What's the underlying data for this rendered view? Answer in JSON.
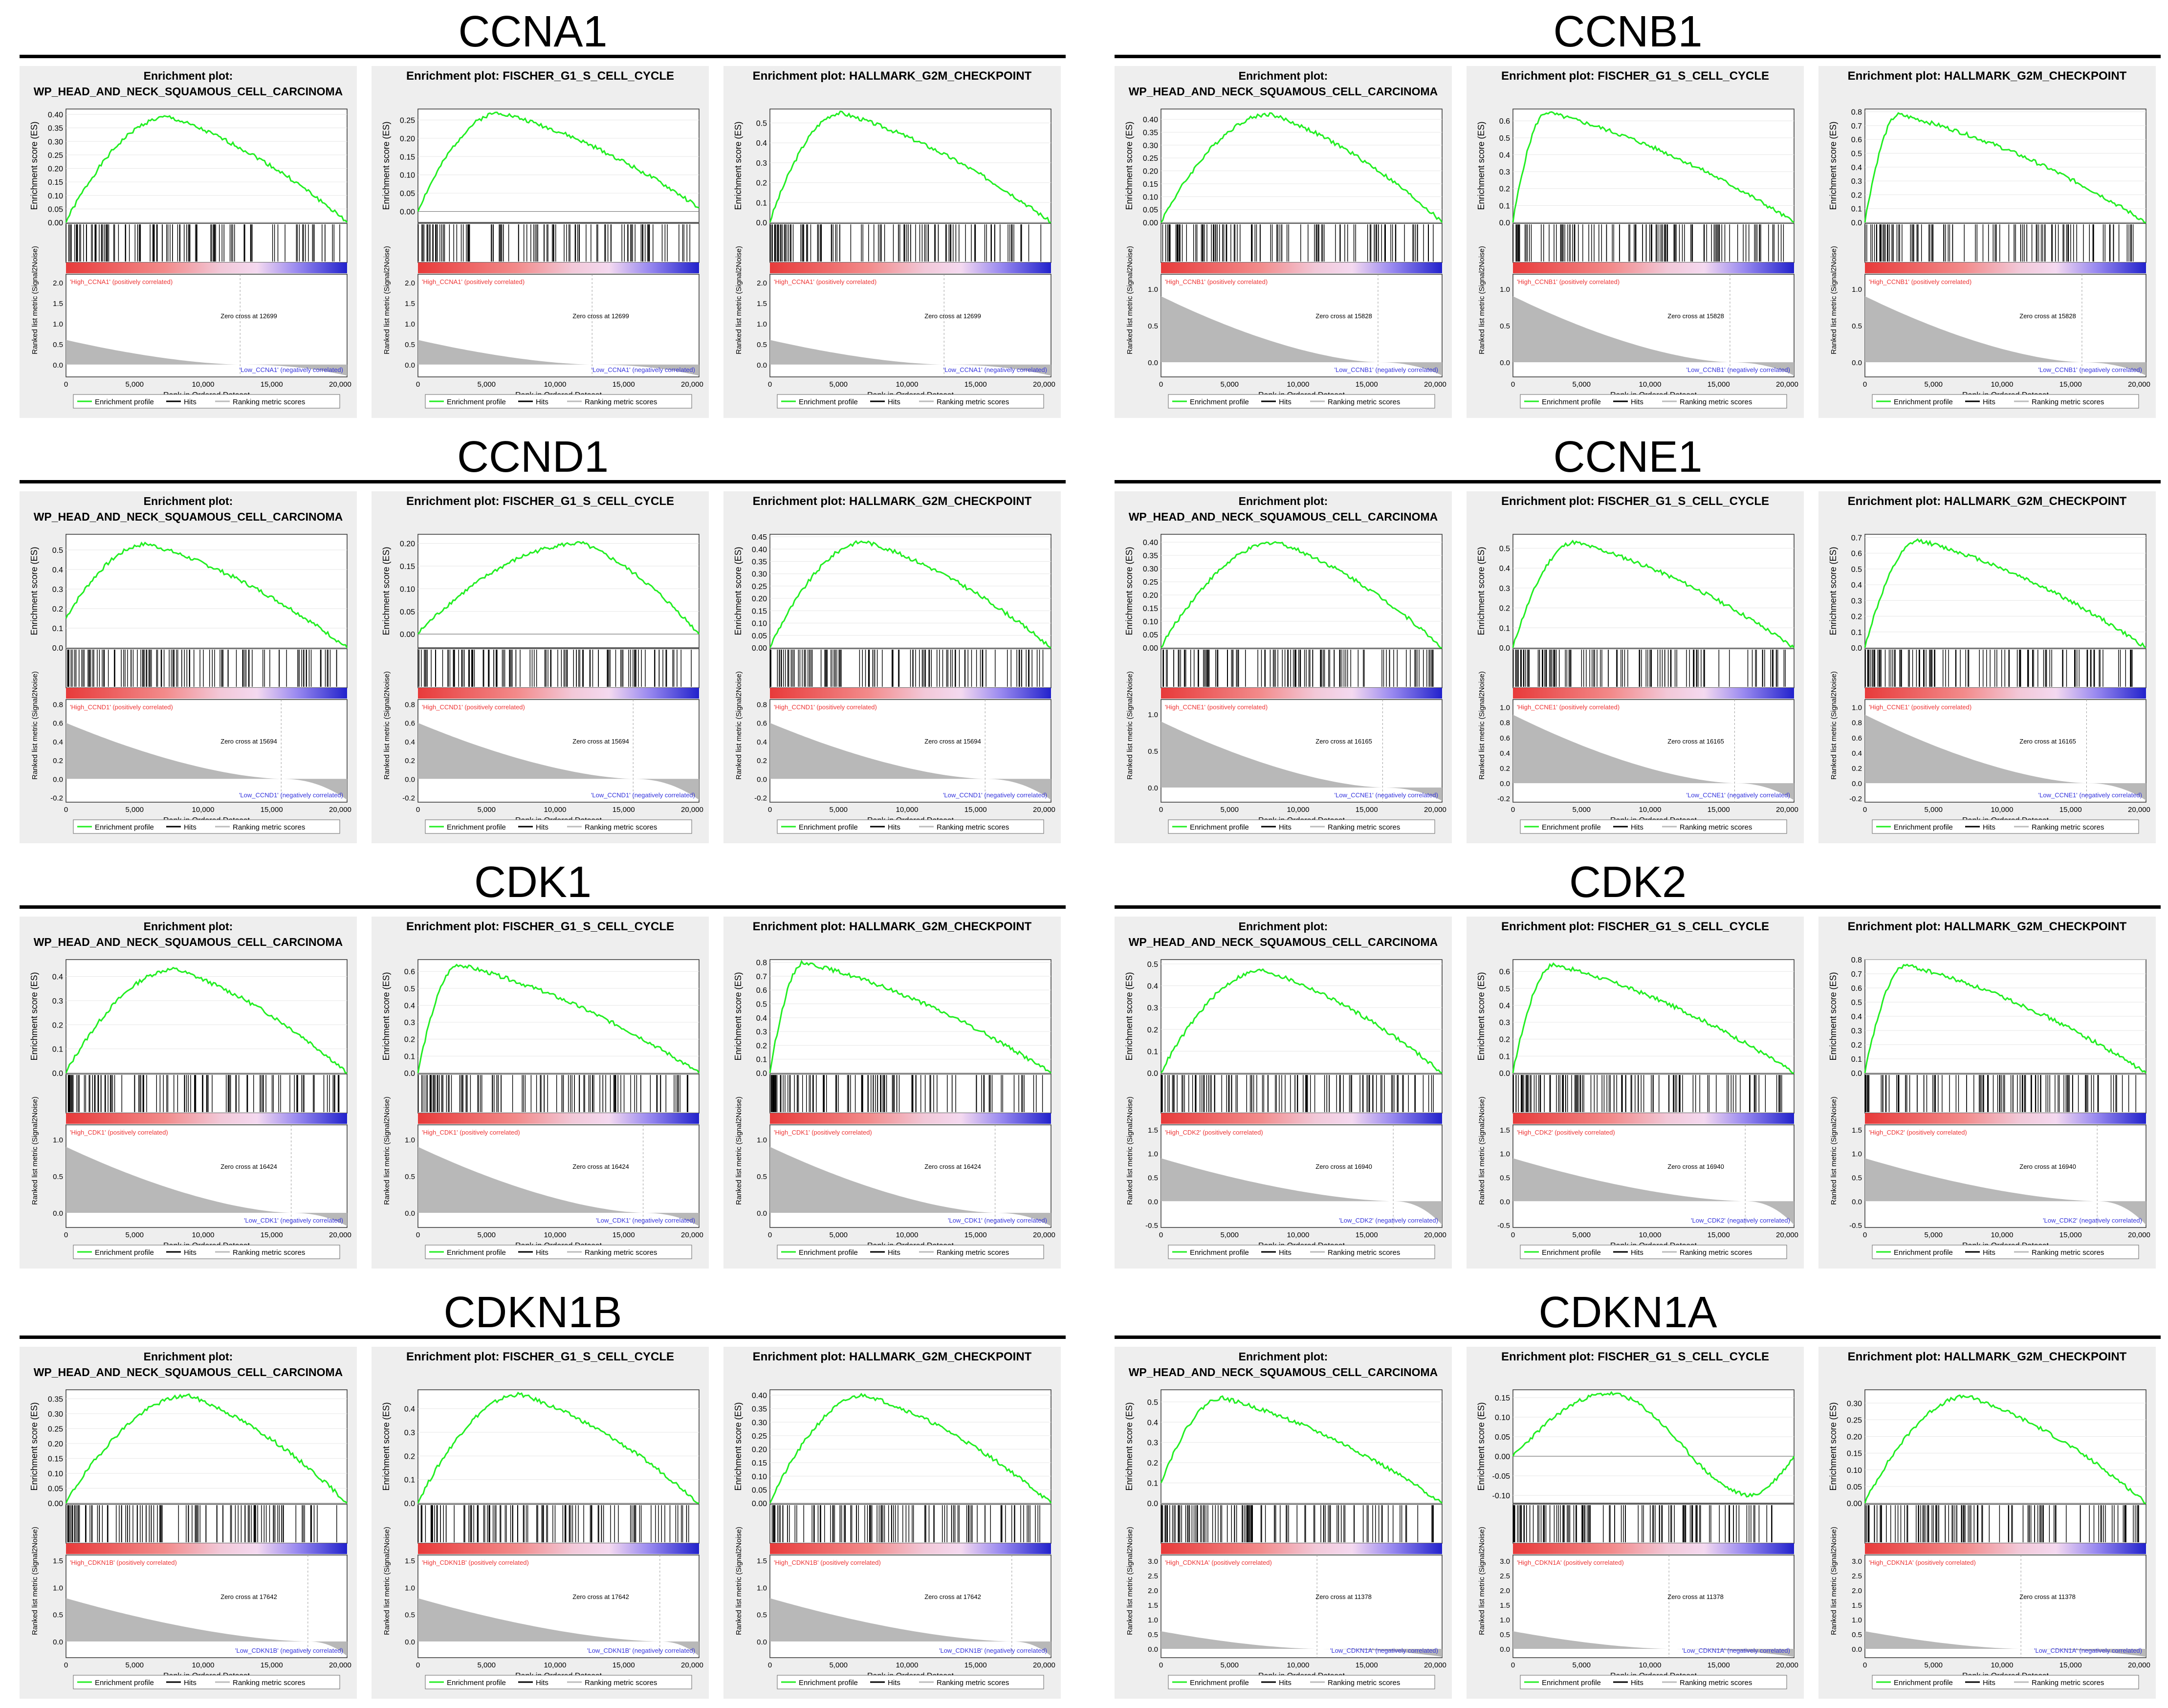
{
  "common": {
    "prefix": "Enrichment plot:",
    "es_label": "Enrichment score (ES)",
    "metric_label": "Ranked list metric (Signal2Noise)",
    "x_label": "Rank in Ordered Dataset",
    "x_ticks": [
      "0",
      "5,000",
      "10,000",
      "15,000",
      "20,000"
    ],
    "legend": [
      "Enrichment profile",
      "Hits",
      "Ranking metric scores"
    ],
    "colors": {
      "profile": "#22ee22",
      "hits": "#000000",
      "high": "#ee3333",
      "low": "#3333dd",
      "metric": "#b8b8b8"
    }
  },
  "groups": [
    {
      "gene": "CCNA1",
      "zero_cross": "Zero cross at 12699",
      "high": "'High_CCNA1' (positively correlated)",
      "low": "'Low_CCNA1' (negatively correlated)"
    },
    {
      "gene": "CCNB1",
      "zero_cross": "Zero cross at 15828",
      "high": "'High_CCNB1' (positively correlated)",
      "low": "'Low_CCNB1' (negatively correlated)"
    },
    {
      "gene": "CCND1",
      "zero_cross": "Zero cross at 15694",
      "high": "'High_CCND1' (positively correlated)",
      "low": "'Low_CCND1' (negatively correlated)"
    },
    {
      "gene": "CCNE1",
      "zero_cross": "Zero cross at 16165",
      "high": "'High_CCNE1' (positively correlated)",
      "low": "'Low_CCNE1' (negatively correlated)"
    },
    {
      "gene": "CDK1",
      "zero_cross": "Zero cross at 16424",
      "high": "'High_CDK1' (positively correlated)",
      "low": "'Low_CDK1' (negatively correlated)"
    },
    {
      "gene": "CDK2",
      "zero_cross": "Zero cross at 16940",
      "high": "'High_CDK2' (positively correlated)",
      "low": "'Low_CDK2' (negatively correlated)"
    },
    {
      "gene": "CDKN1B",
      "zero_cross": "Zero cross at 17642",
      "high": "'High_CDKN1B' (positively correlated)",
      "low": "'Low_CDKN1B' (negatively correlated)"
    },
    {
      "gene": "CDKN1A",
      "zero_cross": "Zero cross at 11378",
      "high": "'High_CDKN1A' (positively correlated)",
      "low": "'Low_CDKN1A' (negatively correlated)"
    }
  ],
  "chart_data": [
    {
      "type": "line",
      "group": "CCNA1",
      "title_lines": [
        "Enrichment plot:",
        "WP_HEAD_AND_NECK_SQUAMOUS_CELL_CARCINOMA"
      ],
      "es_ticks": [
        "0.00",
        "0.05",
        "0.10",
        "0.15",
        "0.20",
        "0.25",
        "0.30",
        "0.35",
        "0.40"
      ],
      "es_range": [
        0,
        0.42
      ],
      "peak_x": 7500,
      "peak_es": 0.39,
      "end_es": 0.0,
      "start_es": 0.0,
      "zero_cross_x": 12699,
      "metric_ticks": [
        "0.0",
        "0.5",
        "1.0",
        "1.5",
        "2.0"
      ],
      "metric_range": [
        -0.3,
        2.2
      ],
      "metric_start": 0.6
    },
    {
      "type": "line",
      "group": "CCNA1",
      "title_lines": [
        "Enrichment plot: FISCHER_G1_S_CELL_CYCLE"
      ],
      "es_ticks": [
        "0.00",
        "0.05",
        "0.10",
        "0.15",
        "0.20",
        "0.25"
      ],
      "es_range": [
        -0.03,
        0.28
      ],
      "peak_x": 6000,
      "peak_es": 0.27,
      "end_es": 0.01,
      "start_es": 0.0,
      "zero_cross_x": 12699,
      "metric_ticks": [
        "0.0",
        "0.5",
        "1.0",
        "1.5",
        "2.0"
      ],
      "metric_range": [
        -0.3,
        2.2
      ],
      "metric_start": 0.6
    },
    {
      "type": "line",
      "group": "CCNA1",
      "title_lines": [
        "Enrichment plot: HALLMARK_G2M_CHECKPOINT"
      ],
      "es_ticks": [
        "0.0",
        "0.1",
        "0.2",
        "0.3",
        "0.4",
        "0.5"
      ],
      "es_range": [
        0,
        0.57
      ],
      "peak_x": 5200,
      "peak_es": 0.55,
      "end_es": 0.0,
      "start_es": 0.0,
      "zero_cross_x": 12699,
      "metric_ticks": [
        "0.0",
        "0.5",
        "1.0",
        "1.5",
        "2.0"
      ],
      "metric_range": [
        -0.3,
        2.2
      ],
      "metric_start": 0.6
    },
    {
      "type": "line",
      "group": "CCNB1",
      "title_lines": [
        "Enrichment plot:",
        "WP_HEAD_AND_NECK_SQUAMOUS_CELL_CARCINOMA"
      ],
      "es_ticks": [
        "0.00",
        "0.05",
        "0.10",
        "0.15",
        "0.20",
        "0.25",
        "0.30",
        "0.35",
        "0.40"
      ],
      "es_range": [
        0,
        0.44
      ],
      "peak_x": 8000,
      "peak_es": 0.42,
      "end_es": 0.0,
      "start_es": 0.0,
      "zero_cross_x": 15828,
      "metric_ticks": [
        "0.0",
        "0.5",
        "1.0"
      ],
      "metric_range": [
        -0.2,
        1.2
      ],
      "metric_start": 0.9
    },
    {
      "type": "line",
      "group": "CCNB1",
      "title_lines": [
        "Enrichment plot: FISCHER_G1_S_CELL_CYCLE"
      ],
      "es_ticks": [
        "0.0",
        "0.1",
        "0.2",
        "0.3",
        "0.4",
        "0.5",
        "0.6"
      ],
      "es_range": [
        0,
        0.67
      ],
      "peak_x": 2500,
      "peak_es": 0.65,
      "end_es": 0.0,
      "start_es": 0.0,
      "zero_cross_x": 15828,
      "metric_ticks": [
        "0.0",
        "0.5",
        "1.0"
      ],
      "metric_range": [
        -0.2,
        1.2
      ],
      "metric_start": 0.9
    },
    {
      "type": "line",
      "group": "CCNB1",
      "title_lines": [
        "Enrichment plot: HALLMARK_G2M_CHECKPOINT"
      ],
      "es_ticks": [
        "0.0",
        "0.1",
        "0.2",
        "0.3",
        "0.4",
        "0.5",
        "0.6",
        "0.7",
        "0.8"
      ],
      "es_range": [
        0,
        0.82
      ],
      "peak_x": 2500,
      "peak_es": 0.78,
      "end_es": 0.0,
      "start_es": 0.0,
      "zero_cross_x": 15828,
      "metric_ticks": [
        "0.0",
        "0.5",
        "1.0"
      ],
      "metric_range": [
        -0.2,
        1.2
      ],
      "metric_start": 0.9
    },
    {
      "type": "line",
      "group": "CCND1",
      "title_lines": [
        "Enrichment plot:",
        "WP_HEAD_AND_NECK_SQUAMOUS_CELL_CARCINOMA"
      ],
      "es_ticks": [
        "0.0",
        "0.1",
        "0.2",
        "0.3",
        "0.4",
        "0.5"
      ],
      "es_range": [
        0,
        0.58
      ],
      "peak_x": 6000,
      "peak_es": 0.53,
      "end_es": 0.0,
      "start_es": 0.15,
      "zero_cross_x": 15694,
      "metric_ticks": [
        "-0.2",
        "0.0",
        "0.2",
        "0.4",
        "0.6",
        "0.8"
      ],
      "metric_range": [
        -0.25,
        0.85
      ],
      "metric_start": 0.6
    },
    {
      "type": "line",
      "group": "CCND1",
      "title_lines": [
        "Enrichment plot: FISCHER_G1_S_CELL_CYCLE"
      ],
      "es_ticks": [
        "0.00",
        "0.05",
        "0.10",
        "0.15",
        "0.20"
      ],
      "es_range": [
        -0.03,
        0.22
      ],
      "peak_x": 12000,
      "peak_es": 0.2,
      "end_es": 0.0,
      "start_es": 0.0,
      "zero_cross_x": 15694,
      "metric_ticks": [
        "-0.2",
        "0.0",
        "0.2",
        "0.4",
        "0.6",
        "0.8"
      ],
      "metric_range": [
        -0.25,
        0.85
      ],
      "metric_start": 0.6
    },
    {
      "type": "line",
      "group": "CCND1",
      "title_lines": [
        "Enrichment plot: HALLMARK_G2M_CHECKPOINT"
      ],
      "es_ticks": [
        "0.00",
        "0.05",
        "0.10",
        "0.15",
        "0.20",
        "0.25",
        "0.30",
        "0.35",
        "0.40",
        "0.45"
      ],
      "es_range": [
        0,
        0.46
      ],
      "peak_x": 7000,
      "peak_es": 0.43,
      "end_es": 0.0,
      "start_es": 0.0,
      "zero_cross_x": 15694,
      "metric_ticks": [
        "-0.2",
        "0.0",
        "0.2",
        "0.4",
        "0.6",
        "0.8"
      ],
      "metric_range": [
        -0.25,
        0.85
      ],
      "metric_start": 0.6
    },
    {
      "type": "line",
      "group": "CCNE1",
      "title_lines": [
        "Enrichment plot:",
        "WP_HEAD_AND_NECK_SQUAMOUS_CELL_CARCINOMA"
      ],
      "es_ticks": [
        "0.00",
        "0.05",
        "0.10",
        "0.15",
        "0.20",
        "0.25",
        "0.30",
        "0.35",
        "0.40"
      ],
      "es_range": [
        0,
        0.43
      ],
      "peak_x": 8500,
      "peak_es": 0.4,
      "end_es": 0.0,
      "start_es": 0.0,
      "zero_cross_x": 16165,
      "metric_ticks": [
        "0.0",
        "0.5",
        "1.0"
      ],
      "metric_range": [
        -0.2,
        1.2
      ],
      "metric_start": 0.9
    },
    {
      "type": "line",
      "group": "CCNE1",
      "title_lines": [
        "Enrichment plot: FISCHER_G1_S_CELL_CYCLE"
      ],
      "es_ticks": [
        "0.0",
        "0.1",
        "0.2",
        "0.3",
        "0.4",
        "0.5"
      ],
      "es_range": [
        0,
        0.57
      ],
      "peak_x": 4500,
      "peak_es": 0.53,
      "end_es": 0.0,
      "start_es": 0.0,
      "zero_cross_x": 16165,
      "metric_ticks": [
        "-0.2",
        "0.0",
        "0.2",
        "0.4",
        "0.6",
        "0.8",
        "1.0"
      ],
      "metric_range": [
        -0.25,
        1.1
      ],
      "metric_start": 0.9
    },
    {
      "type": "line",
      "group": "CCNE1",
      "title_lines": [
        "Enrichment plot: HALLMARK_G2M_CHECKPOINT"
      ],
      "es_ticks": [
        "0.0",
        "0.1",
        "0.2",
        "0.3",
        "0.4",
        "0.5",
        "0.6",
        "0.7"
      ],
      "es_range": [
        0,
        0.72
      ],
      "peak_x": 4000,
      "peak_es": 0.68,
      "end_es": 0.0,
      "start_es": 0.0,
      "zero_cross_x": 16165,
      "metric_ticks": [
        "-0.2",
        "0.0",
        "0.2",
        "0.4",
        "0.6",
        "0.8",
        "1.0"
      ],
      "metric_range": [
        -0.25,
        1.1
      ],
      "metric_start": 0.9
    },
    {
      "type": "line",
      "group": "CDK1",
      "title_lines": [
        "Enrichment plot:",
        "WP_HEAD_AND_NECK_SQUAMOUS_CELL_CARCINOMA"
      ],
      "es_ticks": [
        "0.0",
        "0.1",
        "0.2",
        "0.3",
        "0.4"
      ],
      "es_range": [
        0,
        0.47
      ],
      "peak_x": 8000,
      "peak_es": 0.43,
      "end_es": 0.0,
      "start_es": 0.0,
      "zero_cross_x": 16424,
      "metric_ticks": [
        "0.0",
        "0.5",
        "1.0"
      ],
      "metric_range": [
        -0.2,
        1.2
      ],
      "metric_start": 0.9
    },
    {
      "type": "line",
      "group": "CDK1",
      "title_lines": [
        "Enrichment plot: FISCHER_G1_S_CELL_CYCLE"
      ],
      "es_ticks": [
        "0.0",
        "0.1",
        "0.2",
        "0.3",
        "0.4",
        "0.5",
        "0.6"
      ],
      "es_range": [
        0,
        0.67
      ],
      "peak_x": 3000,
      "peak_es": 0.64,
      "end_es": 0.0,
      "start_es": 0.0,
      "zero_cross_x": 16424,
      "metric_ticks": [
        "0.0",
        "0.5",
        "1.0"
      ],
      "metric_range": [
        -0.2,
        1.2
      ],
      "metric_start": 0.9
    },
    {
      "type": "line",
      "group": "CDK1",
      "title_lines": [
        "Enrichment plot: HALLMARK_G2M_CHECKPOINT"
      ],
      "es_ticks": [
        "0.0",
        "0.1",
        "0.2",
        "0.3",
        "0.4",
        "0.5",
        "0.6",
        "0.7",
        "0.8"
      ],
      "es_range": [
        0,
        0.82
      ],
      "peak_x": 2500,
      "peak_es": 0.8,
      "end_es": 0.0,
      "start_es": 0.0,
      "zero_cross_x": 16424,
      "metric_ticks": [
        "0.0",
        "0.5",
        "1.0"
      ],
      "metric_range": [
        -0.2,
        1.2
      ],
      "metric_start": 0.9
    },
    {
      "type": "line",
      "group": "CDK2",
      "title_lines": [
        "Enrichment plot:",
        "WP_HEAD_AND_NECK_SQUAMOUS_CELL_CARCINOMA"
      ],
      "es_ticks": [
        "0.0",
        "0.1",
        "0.2",
        "0.3",
        "0.4",
        "0.5"
      ],
      "es_range": [
        0,
        0.52
      ],
      "peak_x": 7500,
      "peak_es": 0.47,
      "end_es": 0.0,
      "start_es": 0.0,
      "zero_cross_x": 16940,
      "metric_ticks": [
        "-0.5",
        "0.0",
        "0.5",
        "1.0",
        "1.5"
      ],
      "metric_range": [
        -0.55,
        1.6
      ],
      "metric_start": 0.9
    },
    {
      "type": "line",
      "group": "CDK2",
      "title_lines": [
        "Enrichment plot: FISCHER_G1_S_CELL_CYCLE"
      ],
      "es_ticks": [
        "0.0",
        "0.1",
        "0.2",
        "0.3",
        "0.4",
        "0.5",
        "0.6"
      ],
      "es_range": [
        0,
        0.67
      ],
      "peak_x": 3000,
      "peak_es": 0.64,
      "end_es": 0.0,
      "start_es": 0.0,
      "zero_cross_x": 16940,
      "metric_ticks": [
        "-0.5",
        "0.0",
        "0.5",
        "1.0",
        "1.5"
      ],
      "metric_range": [
        -0.55,
        1.6
      ],
      "metric_start": 0.9
    },
    {
      "type": "line",
      "group": "CDK2",
      "title_lines": [
        "Enrichment plot: HALLMARK_G2M_CHECKPOINT"
      ],
      "es_ticks": [
        "0.0",
        "0.1",
        "0.2",
        "0.3",
        "0.4",
        "0.5",
        "0.6",
        "0.7",
        "0.8"
      ],
      "es_range": [
        0,
        0.8
      ],
      "peak_x": 3000,
      "peak_es": 0.76,
      "end_es": 0.0,
      "start_es": 0.0,
      "zero_cross_x": 16940,
      "metric_ticks": [
        "-0.5",
        "0.0",
        "0.5",
        "1.0",
        "1.5"
      ],
      "metric_range": [
        -0.55,
        1.6
      ],
      "metric_start": 0.9
    },
    {
      "type": "line",
      "group": "CDKN1B",
      "title_lines": [
        "Enrichment plot:",
        "WP_HEAD_AND_NECK_SQUAMOUS_CELL_CARCINOMA"
      ],
      "es_ticks": [
        "0.00",
        "0.05",
        "0.10",
        "0.15",
        "0.20",
        "0.25",
        "0.30",
        "0.35"
      ],
      "es_range": [
        0,
        0.38
      ],
      "peak_x": 9000,
      "peak_es": 0.36,
      "end_es": 0.0,
      "start_es": 0.0,
      "zero_cross_x": 17642,
      "metric_ticks": [
        "0.0",
        "0.5",
        "1.0",
        "1.5"
      ],
      "metric_range": [
        -0.3,
        1.6
      ],
      "metric_start": 0.8
    },
    {
      "type": "line",
      "group": "CDKN1B",
      "title_lines": [
        "Enrichment plot: FISCHER_G1_S_CELL_CYCLE"
      ],
      "es_ticks": [
        "0.0",
        "0.1",
        "0.2",
        "0.3",
        "0.4"
      ],
      "es_range": [
        0,
        0.48
      ],
      "peak_x": 7500,
      "peak_es": 0.46,
      "end_es": 0.0,
      "start_es": 0.0,
      "zero_cross_x": 17642,
      "metric_ticks": [
        "0.0",
        "0.5",
        "1.0",
        "1.5"
      ],
      "metric_range": [
        -0.3,
        1.6
      ],
      "metric_start": 0.8
    },
    {
      "type": "line",
      "group": "CDKN1B",
      "title_lines": [
        "Enrichment plot: HALLMARK_G2M_CHECKPOINT"
      ],
      "es_ticks": [
        "0.00",
        "0.05",
        "0.10",
        "0.15",
        "0.20",
        "0.25",
        "0.30",
        "0.35",
        "0.40"
      ],
      "es_range": [
        0,
        0.42
      ],
      "peak_x": 7000,
      "peak_es": 0.4,
      "end_es": 0.0,
      "start_es": 0.0,
      "zero_cross_x": 17642,
      "metric_ticks": [
        "0.0",
        "0.5",
        "1.0",
        "1.5"
      ],
      "metric_range": [
        -0.3,
        1.6
      ],
      "metric_start": 0.8
    },
    {
      "type": "line",
      "group": "CDKN1A",
      "title_lines": [
        "Enrichment plot:",
        "WP_HEAD_AND_NECK_SQUAMOUS_CELL_CARCINOMA"
      ],
      "es_ticks": [
        "0.0",
        "0.1",
        "0.2",
        "0.3",
        "0.4",
        "0.5"
      ],
      "es_range": [
        0,
        0.56
      ],
      "peak_x": 4500,
      "peak_es": 0.52,
      "end_es": 0.0,
      "start_es": 0.1,
      "zero_cross_x": 11378,
      "metric_ticks": [
        "0.0",
        "0.5",
        "1.0",
        "1.5",
        "2.0",
        "2.5",
        "3.0"
      ],
      "metric_range": [
        -0.3,
        3.2
      ],
      "metric_start": 0.6
    },
    {
      "type": "line",
      "group": "CDKN1A",
      "title_lines": [
        "Enrichment plot: FISCHER_G1_S_CELL_CYCLE"
      ],
      "es_ticks": [
        "-0.10",
        "-0.05",
        "0.00",
        "0.05",
        "0.10",
        "0.15"
      ],
      "es_range": [
        -0.12,
        0.17
      ],
      "peak_x": 7000,
      "peak_es": 0.16,
      "end_es": 0.0,
      "start_es": 0.0,
      "valley_x": 17500,
      "valley_es": -0.1,
      "zero_cross_x": 11378,
      "metric_ticks": [
        "0.0",
        "0.5",
        "1.0",
        "1.5",
        "2.0",
        "2.5",
        "3.0"
      ],
      "metric_range": [
        -0.3,
        3.2
      ],
      "metric_start": 0.6
    },
    {
      "type": "line",
      "group": "CDKN1A",
      "title_lines": [
        "Enrichment plot: HALLMARK_G2M_CHECKPOINT"
      ],
      "es_ticks": [
        "0.00",
        "0.05",
        "0.10",
        "0.15",
        "0.20",
        "0.25",
        "0.30"
      ],
      "es_range": [
        0,
        0.34
      ],
      "peak_x": 7500,
      "peak_es": 0.32,
      "end_es": 0.0,
      "start_es": 0.0,
      "zero_cross_x": 11378,
      "metric_ticks": [
        "0.0",
        "0.5",
        "1.0",
        "1.5",
        "2.0",
        "2.5",
        "3.0"
      ],
      "metric_range": [
        -0.3,
        3.2
      ],
      "metric_start": 0.6
    }
  ]
}
